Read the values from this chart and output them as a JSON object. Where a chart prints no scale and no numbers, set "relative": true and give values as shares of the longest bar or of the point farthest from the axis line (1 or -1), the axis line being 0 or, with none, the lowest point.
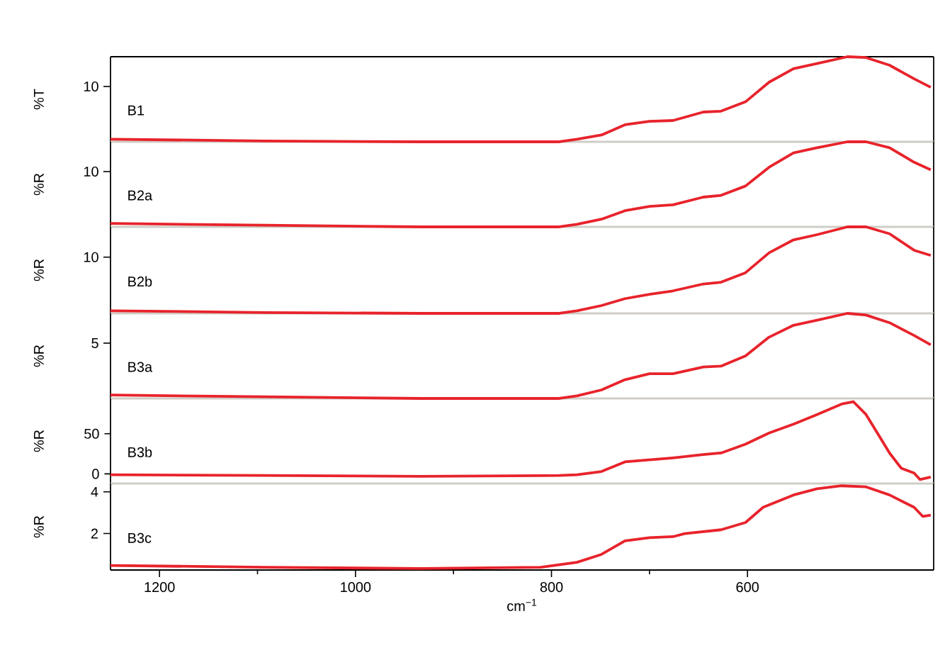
{
  "chart_data": [
    {
      "type": "line",
      "relative": true,
      "ylabel": "%T",
      "annotations": [
        "10"
      ],
      "xlim": [
        1250,
        410
      ],
      "xticks": [
        1200,
        1000,
        800,
        600
      ],
      "tick_labels": false,
      "x": [
        1250,
        1093,
        933,
        792,
        774,
        749,
        725,
        700,
        676,
        645,
        627,
        602,
        578,
        553,
        529,
        498,
        479,
        455,
        430,
        413
      ],
      "series": [
        {
          "name": "B1",
          "color": "#e8232b",
          "values": [
            0.03,
            0.01,
            0,
            0,
            0.03,
            0.08,
            0.2,
            0.24,
            0.25,
            0.35,
            0.36,
            0.47,
            0.7,
            0.86,
            0.92,
            1,
            0.99,
            0.9,
            0.74,
            0.64
          ]
        }
      ]
    },
    {
      "type": "line",
      "relative": true,
      "ylabel": "%R",
      "annotations": [
        "10"
      ],
      "xlim": [
        1250,
        410
      ],
      "xticks": [
        1200,
        1000,
        800,
        600
      ],
      "tick_labels": false,
      "x": [
        1250,
        1093,
        933,
        792,
        774,
        749,
        725,
        700,
        676,
        645,
        627,
        602,
        578,
        553,
        529,
        498,
        479,
        455,
        430,
        413
      ],
      "series": [
        {
          "name": "B2a",
          "color": "#e8232b",
          "values": [
            0.04,
            0.02,
            0,
            0,
            0.03,
            0.09,
            0.19,
            0.24,
            0.26,
            0.35,
            0.37,
            0.48,
            0.7,
            0.87,
            0.93,
            1,
            1,
            0.93,
            0.76,
            0.67
          ]
        }
      ]
    },
    {
      "type": "line",
      "relative": true,
      "ylabel": "%R",
      "annotations": [
        "10"
      ],
      "xlim": [
        1250,
        410
      ],
      "xticks": [
        1200,
        1000,
        800,
        600
      ],
      "tick_labels": false,
      "x": [
        1250,
        1093,
        933,
        792,
        774,
        749,
        725,
        700,
        676,
        645,
        627,
        602,
        578,
        553,
        529,
        498,
        479,
        455,
        430,
        413
      ],
      "series": [
        {
          "name": "B2b",
          "color": "#e8232b",
          "values": [
            0.03,
            0.01,
            0,
            0,
            0.03,
            0.09,
            0.17,
            0.22,
            0.26,
            0.34,
            0.36,
            0.47,
            0.7,
            0.85,
            0.91,
            1,
            1,
            0.92,
            0.73,
            0.67
          ]
        }
      ]
    },
    {
      "type": "line",
      "relative": true,
      "ylabel": "%R",
      "annotations": [
        "5"
      ],
      "xlim": [
        1250,
        410
      ],
      "xticks": [
        1200,
        1000,
        800,
        600
      ],
      "tick_labels": false,
      "x": [
        1250,
        1093,
        933,
        792,
        774,
        749,
        725,
        700,
        676,
        645,
        627,
        602,
        578,
        553,
        529,
        498,
        479,
        455,
        430,
        413
      ],
      "series": [
        {
          "name": "B3a",
          "color": "#e8232b",
          "values": [
            0.04,
            0.02,
            0,
            0,
            0.03,
            0.1,
            0.22,
            0.29,
            0.29,
            0.37,
            0.38,
            0.5,
            0.72,
            0.86,
            0.92,
            1,
            0.98,
            0.89,
            0.74,
            0.63
          ]
        }
      ]
    },
    {
      "type": "line",
      "ylabel": "%R",
      "xlim": [
        1250,
        410
      ],
      "xticks": [
        1200,
        1000,
        800,
        600
      ],
      "ylim": [
        -12,
        94
      ],
      "yticks": [
        0,
        50
      ],
      "tick_labels": "y",
      "x": [
        1250,
        1093,
        933,
        792,
        774,
        749,
        725,
        676,
        645,
        627,
        602,
        578,
        553,
        529,
        504,
        492,
        479,
        467,
        455,
        443,
        430,
        424,
        413
      ],
      "series": [
        {
          "name": "B3b",
          "color": "#e8232b",
          "values": [
            -1,
            -2,
            -3,
            -2,
            -1,
            3,
            15,
            20,
            24,
            26,
            37,
            51,
            62,
            74,
            87,
            90,
            74,
            50,
            26,
            7,
            1,
            -7,
            -4
          ]
        }
      ]
    },
    {
      "type": "line",
      "ylabel": "%R",
      "xlabel": "cm$^{−1}$",
      "xlim": [
        1250,
        410
      ],
      "xticks": [
        1200,
        1000,
        800,
        600
      ],
      "ylim": [
        0.25,
        4.4
      ],
      "yticks": [
        2,
        4
      ],
      "x": [
        1250,
        1093,
        933,
        811,
        774,
        749,
        725,
        700,
        676,
        664,
        627,
        602,
        584,
        553,
        529,
        504,
        479,
        455,
        430,
        421,
        413
      ],
      "series": [
        {
          "name": "B3c",
          "color": "#e8232b",
          "values": [
            0.47,
            0.38,
            0.32,
            0.38,
            0.62,
            1.0,
            1.65,
            1.8,
            1.85,
            2.0,
            2.18,
            2.53,
            3.26,
            3.85,
            4.15,
            4.29,
            4.24,
            3.85,
            3.26,
            2.82,
            2.88
          ]
        }
      ]
    }
  ]
}
